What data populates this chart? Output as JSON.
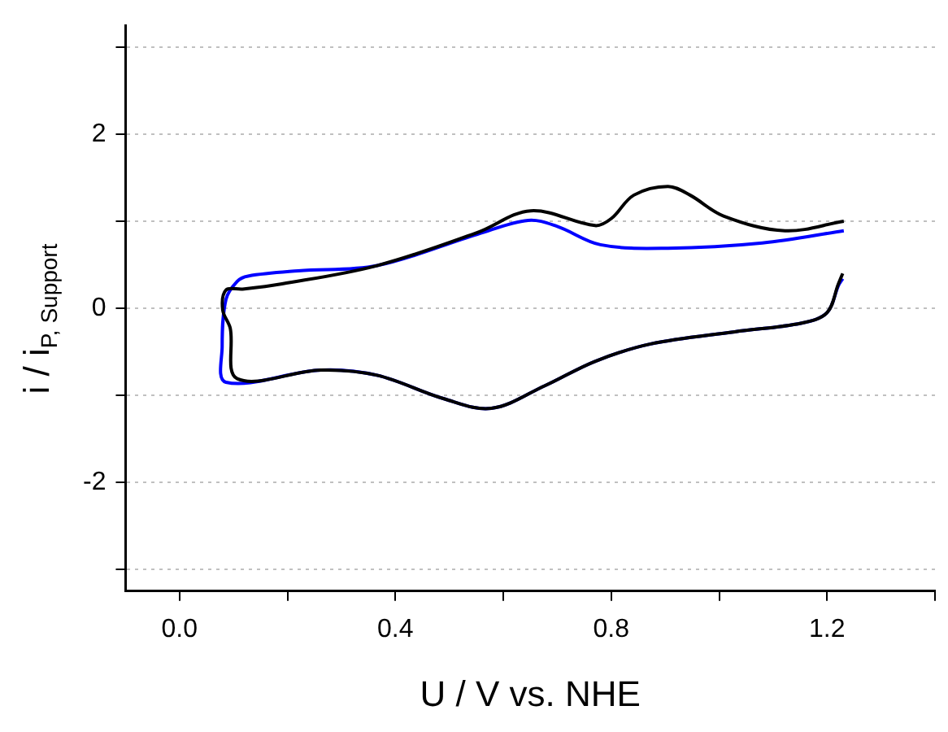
{
  "chart_data": {
    "type": "line",
    "xlabel": "U / V vs. NHE",
    "ylabel": "i / i$_{P, Support}$",
    "xlim": [
      -0.1,
      1.4
    ],
    "xticks": [
      {
        "value": 0,
        "label": "0.0"
      },
      {
        "value": 0.2,
        "label": null
      },
      0.4,
      {
        "value": 0.6,
        "label": null
      },
      0.8,
      {
        "value": 1.0,
        "label": null
      },
      1.2,
      {
        "value": 1.4,
        "label": null
      }
    ],
    "ylim": [
      -3.25,
      3.25
    ],
    "yticks": [
      {
        "value": -3,
        "label": null
      },
      -2,
      {
        "value": -1,
        "label": null
      },
      0,
      {
        "value": 1,
        "label": null
      },
      2,
      {
        "value": 3,
        "label": null
      }
    ],
    "grid": "y",
    "legend": false,
    "marker": "none",
    "line_style": "solid",
    "series": [
      {
        "color": "#000000",
        "x": [
          1.229,
          1.221,
          1.2,
          1.153,
          1.029,
          0.873,
          0.77,
          0.677,
          0.578,
          0.49,
          0.366,
          0.262,
          0.107,
          0.094,
          0.08,
          0.086,
          0.117,
          0.19,
          0.366,
          0.552,
          0.651,
          0.77,
          0.8,
          0.842,
          0.905,
          0.946,
          1.008,
          1.122,
          1.231
        ],
        "values": [
          0.4,
          0.28,
          -0.05,
          -0.17,
          -0.27,
          -0.41,
          -0.61,
          -0.89,
          -1.15,
          -1.04,
          -0.77,
          -0.71,
          -0.81,
          -0.23,
          -0.02,
          0.21,
          0.22,
          0.28,
          0.49,
          0.87,
          1.12,
          0.95,
          1.03,
          1.3,
          1.4,
          1.3,
          1.06,
          0.89,
          1.0
        ]
      },
      {
        "color": "#0000ff",
        "x": [
          1.229,
          1.221,
          1.2,
          1.153,
          1.029,
          0.873,
          0.77,
          0.677,
          0.578,
          0.49,
          0.366,
          0.262,
          0.086,
          0.079,
          0.086,
          0.107,
          0.127,
          0.22,
          0.366,
          0.552,
          0.646,
          0.7,
          0.78,
          0.905,
          1.08,
          1.231
        ],
        "values": [
          0.34,
          0.26,
          -0.05,
          -0.17,
          -0.27,
          -0.41,
          -0.61,
          -0.89,
          -1.15,
          -1.04,
          -0.77,
          -0.71,
          -0.85,
          -0.44,
          0.1,
          0.31,
          0.37,
          0.43,
          0.49,
          0.85,
          1.01,
          0.94,
          0.73,
          0.69,
          0.75,
          0.89
        ]
      }
    ]
  }
}
